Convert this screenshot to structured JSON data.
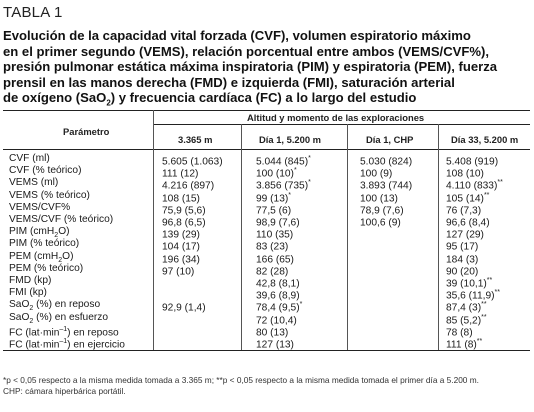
{
  "table_label": "TABLA 1",
  "title": {
    "line1": "Evolución de la capacidad vital forzada (CVF), volumen espiratorio máximo",
    "line2": "en el primer segundo (VEMS), relación porcentual entre ambos (VEMS/CVF%),",
    "line3": "presión pulmonar estática máxima inspiratoria (PIM) y espiratoria (PEM), fuerza",
    "line4": "prensil en las manos derecha (FMD) e izquierda (FMI), saturación arterial",
    "line5a": "de oxígeno (SaO",
    "line5sub": "2",
    "line5b": ") y frecuencia cardíaca (FC) a lo largo del estudio"
  },
  "header": {
    "param": "Parámetro",
    "group": "Altitud y momento de las exploraciones",
    "cols": [
      "3.365 m",
      "Día 1, 5.200 m",
      "Día 1, CHP",
      "Día 33, 5.200 m"
    ]
  },
  "rows": [
    {
      "param": "CVF (ml)",
      "v": [
        "5.605 (1.063)",
        "5.044 (845)",
        "5.030 (824)",
        "5.408 (919)"
      ],
      "m": [
        "",
        "*",
        "",
        ""
      ]
    },
    {
      "param": "CVF (% teórico)",
      "v": [
        "111 (12)",
        "100 (10)",
        "100 (9)",
        "108 (10)"
      ],
      "m": [
        "",
        "*",
        "",
        ""
      ]
    },
    {
      "param": "VEMS (ml)",
      "v": [
        "4.216 (897)",
        "3.856 (735)",
        "3.893 (744)",
        "4.110 (833)"
      ],
      "m": [
        "",
        "*",
        "",
        "**"
      ]
    },
    {
      "param": "VEMS (% teórico)",
      "v": [
        "108 (15)",
        "99 (13)",
        "100 (13)",
        "105 (14)"
      ],
      "m": [
        "",
        "*",
        "",
        "**"
      ]
    },
    {
      "param": "VEMS/CVF%",
      "v": [
        "75,9 (5,6)",
        "77,5 (6)",
        "78,9 (7,6)",
        "76 (7,3)"
      ],
      "m": [
        "",
        "",
        "",
        ""
      ]
    },
    {
      "param": "VEMS/CVF (% teórico)",
      "v": [
        "96,8 (6,5)",
        "98,9 (7,6)",
        "100,6 (9)",
        "96,6 (8,4)"
      ],
      "m": [
        "",
        "",
        "",
        ""
      ]
    },
    {
      "param_a": "PIM (cmH",
      "param_sub": "2",
      "param_b": "O)",
      "v": [
        "139 (29)",
        "110 (35)",
        "",
        "127 (29)"
      ],
      "m": [
        "",
        "",
        "",
        ""
      ]
    },
    {
      "param": "PIM (% teórico)",
      "v": [
        "104 (17)",
        "83 (23)",
        "",
        "95 (17)"
      ],
      "m": [
        "",
        "",
        "",
        ""
      ]
    },
    {
      "param_a": "PEM (cmH",
      "param_sub": "2",
      "param_b": "O)",
      "v": [
        "196 (34)",
        "166 (65)",
        "",
        "184 (3)"
      ],
      "m": [
        "",
        "",
        "",
        ""
      ]
    },
    {
      "param": "PEM (% teórico)",
      "v": [
        "97 (10)",
        "82 (28)",
        "",
        "90 (20)"
      ],
      "m": [
        "",
        "",
        "",
        ""
      ]
    },
    {
      "param": "FMD (kp)",
      "v": [
        "",
        "42,8 (8,1)",
        "",
        "39 (10,1)"
      ],
      "m": [
        "",
        "",
        "",
        "**"
      ]
    },
    {
      "param": "FMI (kp)",
      "v": [
        "",
        "39,6 (8,9)",
        "",
        "35,6 (11,9)"
      ],
      "m": [
        "",
        "",
        "",
        "**"
      ]
    },
    {
      "param_a": "SaO",
      "param_sub": "2",
      "param_b": " (%) en reposo",
      "v": [
        "92,9 (1,4)",
        "78,4 (9,5)",
        "",
        "87,4 (3)"
      ],
      "m": [
        "",
        "*",
        "",
        "**"
      ]
    },
    {
      "param_a": "SaO",
      "param_sub": "2",
      "param_b": " (%) en esfuerzo",
      "v": [
        "",
        "72 (10,4)",
        "",
        "85 (5,2)"
      ],
      "m": [
        "",
        "",
        "",
        "**"
      ]
    },
    {
      "param_a": "FC (lat·min",
      "param_sup": "–1",
      "param_b": ") en reposo",
      "v": [
        "",
        "80 (13)",
        "",
        "78 (8)"
      ],
      "m": [
        "",
        "",
        "",
        ""
      ]
    },
    {
      "param_a": "FC (lat·min",
      "param_sup": "–1",
      "param_b": ") en ejercicio",
      "v": [
        "",
        "127 (13)",
        "",
        "111 (8)"
      ],
      "m": [
        "",
        "",
        "",
        "**"
      ]
    }
  ],
  "footnote": {
    "line1": "*p < 0,05 respecto a la misma medida tomada a 3.365 m; **p < 0,05 respecto a la misma medida tomada el primer día a 5.200 m.",
    "line2": "CHP: cámara hiperbárica portátil."
  }
}
